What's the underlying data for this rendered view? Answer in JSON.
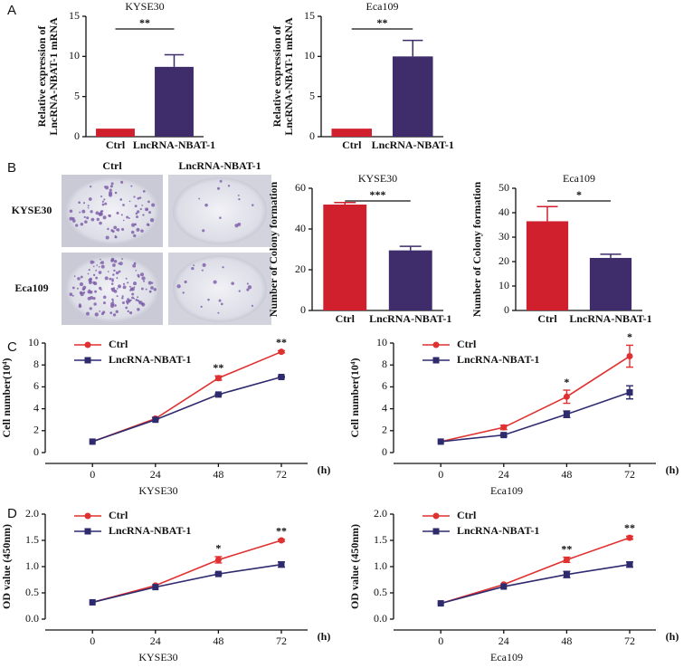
{
  "panels": [
    "A",
    "B",
    "C",
    "D"
  ],
  "colony_panel": {
    "columns": [
      "Ctrl",
      "LncRNA-NBAT-1"
    ],
    "rows": [
      "KYSE30",
      "Eca109"
    ]
  },
  "chart_data": [
    {
      "type": "bar",
      "title": "KYSE30",
      "ylabel": [
        "Relative expression of",
        "LncRNA-NBAT-1 mRNA"
      ],
      "categories": [
        "Ctrl",
        "LncRNA-NBAT-1"
      ],
      "values": [
        1,
        8.7
      ],
      "errors": [
        0,
        1.5
      ],
      "colors": [
        "#d0202e",
        "#3e2c6b"
      ],
      "ylim": [
        0,
        15
      ],
      "yticks": [
        0,
        5,
        10,
        15
      ],
      "annotation": "**"
    },
    {
      "type": "bar",
      "title": "Eca109",
      "ylabel": [
        "Relative expression of",
        "LncRNA-NBAT-1 mRNA"
      ],
      "categories": [
        "Ctrl",
        "LncRNA-NBAT-1"
      ],
      "values": [
        1,
        10
      ],
      "errors": [
        0,
        2
      ],
      "colors": [
        "#d0202e",
        "#3e2c6b"
      ],
      "ylim": [
        0,
        15
      ],
      "yticks": [
        0,
        5,
        10,
        15
      ],
      "annotation": "**"
    },
    {
      "type": "bar",
      "title": "KYSE30",
      "ylabel": [
        "Number of Colony formation"
      ],
      "categories": [
        "Ctrl",
        "LncRNA-NBAT-1"
      ],
      "values": [
        52,
        29.5
      ],
      "errors": [
        1,
        2
      ],
      "colors": [
        "#d0202e",
        "#3e2c6b"
      ],
      "ylim": [
        0,
        60
      ],
      "yticks": [
        0,
        20,
        40,
        60
      ],
      "annotation": "***"
    },
    {
      "type": "bar",
      "title": "Eca109",
      "ylabel": [
        "Number of Colony formation"
      ],
      "categories": [
        "Ctrl",
        "LncRNA-NBAT-1"
      ],
      "values": [
        36.5,
        21.5
      ],
      "errors": [
        6,
        1.5
      ],
      "colors": [
        "#d0202e",
        "#3e2c6b"
      ],
      "ylim": [
        0,
        50
      ],
      "yticks": [
        0,
        10,
        20,
        30,
        40,
        50
      ],
      "annotation": "*"
    },
    {
      "type": "line",
      "xlabel": "KYSE30",
      "x_unit": "(h)",
      "ylabel": "Cell number(10⁴)",
      "x": [
        0,
        24,
        48,
        72
      ],
      "xlim": [
        -18,
        82
      ],
      "xticks": [
        0,
        24,
        48,
        72
      ],
      "ylim": [
        0,
        10
      ],
      "yticks": [
        0,
        2,
        4,
        6,
        8,
        10
      ],
      "legend": "upper left",
      "series": [
        {
          "name": "Ctrl",
          "color": "#e03030",
          "marker": "circle",
          "values": [
            1,
            3.1,
            6.8,
            9.2
          ],
          "errors": [
            0,
            0.1,
            0.2,
            0.1
          ]
        },
        {
          "name": "LncRNA-NBAT-1",
          "color": "#2e2a6e",
          "marker": "square",
          "values": [
            1,
            3.0,
            5.3,
            6.9
          ],
          "errors": [
            0,
            0,
            0.05,
            0.05
          ]
        }
      ],
      "annotations": [
        {
          "x": 48,
          "text": "**"
        },
        {
          "x": 72,
          "text": "**"
        }
      ]
    },
    {
      "type": "line",
      "xlabel": "Eca109",
      "x_unit": "(h)",
      "ylabel": "Cell number(10⁴)",
      "x": [
        0,
        24,
        48,
        72
      ],
      "xlim": [
        -18,
        82
      ],
      "xticks": [
        0,
        24,
        48,
        72
      ],
      "ylim": [
        0,
        10
      ],
      "yticks": [
        0,
        2,
        4,
        6,
        8,
        10
      ],
      "legend": "upper left",
      "series": [
        {
          "name": "Ctrl",
          "color": "#e03030",
          "marker": "circle",
          "values": [
            1,
            2.3,
            5.1,
            8.8
          ],
          "errors": [
            0,
            0.2,
            0.6,
            1.0
          ]
        },
        {
          "name": "LncRNA-NBAT-1",
          "color": "#2e2a6e",
          "marker": "square",
          "values": [
            1,
            1.6,
            3.5,
            5.5
          ],
          "errors": [
            0,
            0.1,
            0.3,
            0.6
          ]
        }
      ],
      "annotations": [
        {
          "x": 48,
          "text": "*"
        },
        {
          "x": 72,
          "text": "*"
        }
      ]
    },
    {
      "type": "line",
      "xlabel": "KYSE30",
      "x_unit": "(h)",
      "ylabel": "OD value (450nm)",
      "x": [
        0,
        24,
        48,
        72
      ],
      "xlim": [
        -18,
        82
      ],
      "xticks": [
        0,
        24,
        48,
        72
      ],
      "ylim": [
        0,
        2
      ],
      "yticks": [
        {
          "value": 0,
          "label": "0.0"
        },
        {
          "value": 0.5,
          "label": "0.5"
        },
        {
          "value": 1,
          "label": "1.0"
        },
        {
          "value": 1.5,
          "label": "1.5"
        },
        {
          "value": 2,
          "label": "2.0"
        }
      ],
      "legend": "upper left",
      "series": [
        {
          "name": "Ctrl",
          "color": "#e03030",
          "marker": "circle",
          "values": [
            0.32,
            0.64,
            1.13,
            1.5
          ],
          "errors": [
            0,
            0,
            0.06,
            0.02
          ]
        },
        {
          "name": "LncRNA-NBAT-1",
          "color": "#2e2a6e",
          "marker": "square",
          "values": [
            0.32,
            0.61,
            0.86,
            1.04
          ],
          "errors": [
            0,
            0,
            0.02,
            0.05
          ]
        }
      ],
      "annotations": [
        {
          "x": 48,
          "text": "*"
        },
        {
          "x": 72,
          "text": "**"
        }
      ]
    },
    {
      "type": "line",
      "xlabel": "Eca109",
      "x_unit": "(h)",
      "ylabel": "OD value (450nm)",
      "x": [
        0,
        24,
        48,
        72
      ],
      "xlim": [
        -18,
        82
      ],
      "xticks": [
        0,
        24,
        48,
        72
      ],
      "ylim": [
        0,
        2
      ],
      "yticks": [
        {
          "value": 0,
          "label": "0.0"
        },
        {
          "value": 0.5,
          "label": "0.5"
        },
        {
          "value": 1,
          "label": "1.0"
        },
        {
          "value": 1.5,
          "label": "1.5"
        },
        {
          "value": 2,
          "label": "2.0"
        }
      ],
      "legend": "upper left",
      "series": [
        {
          "name": "Ctrl",
          "color": "#e03030",
          "marker": "circle",
          "values": [
            0.3,
            0.66,
            1.13,
            1.55
          ],
          "errors": [
            0,
            0,
            0.05,
            0.03
          ]
        },
        {
          "name": "LncRNA-NBAT-1",
          "color": "#2e2a6e",
          "marker": "square",
          "values": [
            0.3,
            0.62,
            0.85,
            1.04
          ],
          "errors": [
            0,
            0,
            0.06,
            0.05
          ]
        }
      ],
      "annotations": [
        {
          "x": 48,
          "text": "**"
        },
        {
          "x": 72,
          "text": "**"
        }
      ]
    }
  ]
}
